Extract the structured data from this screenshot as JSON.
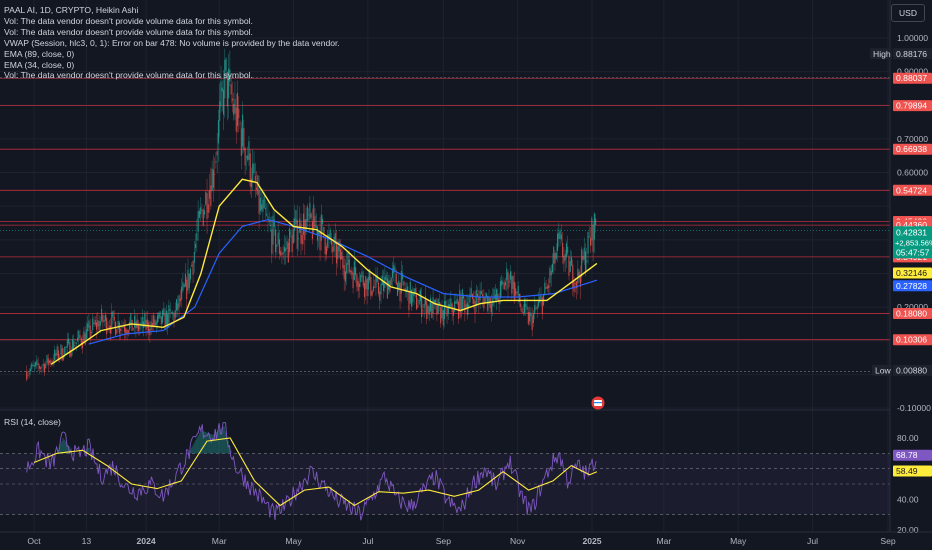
{
  "header": {
    "legend_lines": [
      "PAAL AI, 1D, CRYPTO, Heikin Ashi",
      "Vol: The data vendor doesn't provide volume data for this symbol.",
      "Vol: The data vendor doesn't provide volume data for this symbol.",
      "VWAP (Session, hlc3, 0, 1): Error on bar 478: No volume is provided by the data vendor.",
      "EMA (89, close, 0)",
      "EMA (34, close, 0)",
      "Vol: The data vendor doesn't provide volume data for this symbol."
    ],
    "currency": "USD",
    "rsi_title": "RSI (14, close)"
  },
  "colors": {
    "background": "#131722",
    "up": "#26a69a",
    "down": "#ef5350",
    "ema34": "#ffeb3b",
    "ema89": "#2962ff",
    "rsi": "#7e57c2",
    "rsi_ma": "#ffeb3b",
    "level_line": "#f23645"
  },
  "chart_data": [
    {
      "type": "candlestick",
      "title": "PAAL AI, 1D, CRYPTO, Heikin Ashi",
      "x_ticks": [
        "Oct",
        "13",
        "2024",
        "Mar",
        "May",
        "Jul",
        "Sep",
        "Nov",
        "2025",
        "Mar",
        "May",
        "Jul",
        "Sep"
      ],
      "y_ticks": [
        "1.00000",
        "0.90000",
        "0.70000",
        "0.60000",
        "0.20000",
        "-0.10000"
      ],
      "ylim": [
        -0.12,
        1.06
      ],
      "price_points": [
        [
          "2023-09-25",
          0.01
        ],
        [
          "2023-10-10",
          0.03
        ],
        [
          "2023-10-25",
          0.07
        ],
        [
          "2023-11-10",
          0.11
        ],
        [
          "2023-11-25",
          0.16
        ],
        [
          "2023-12-10",
          0.15
        ],
        [
          "2023-12-25",
          0.14
        ],
        [
          "2024-01-10",
          0.15
        ],
        [
          "2024-01-25",
          0.18
        ],
        [
          "2024-02-05",
          0.28
        ],
        [
          "2024-02-15",
          0.47
        ],
        [
          "2024-02-25",
          0.6
        ],
        [
          "2024-03-06",
          0.88
        ],
        [
          "2024-03-14",
          0.78
        ],
        [
          "2024-03-24",
          0.66
        ],
        [
          "2024-04-03",
          0.5
        ],
        [
          "2024-04-13",
          0.42
        ],
        [
          "2024-04-23",
          0.36
        ],
        [
          "2024-05-03",
          0.43
        ],
        [
          "2024-05-13",
          0.45
        ],
        [
          "2024-05-23",
          0.43
        ],
        [
          "2024-06-03",
          0.37
        ],
        [
          "2024-06-15",
          0.32
        ],
        [
          "2024-06-28",
          0.28
        ],
        [
          "2024-07-10",
          0.25
        ],
        [
          "2024-07-22",
          0.29
        ],
        [
          "2024-08-05",
          0.23
        ],
        [
          "2024-08-20",
          0.2
        ],
        [
          "2024-09-01",
          0.18
        ],
        [
          "2024-09-15",
          0.21
        ],
        [
          "2024-10-01",
          0.23
        ],
        [
          "2024-10-15",
          0.22
        ],
        [
          "2024-10-25",
          0.3
        ],
        [
          "2024-11-05",
          0.19
        ],
        [
          "2024-11-12",
          0.16
        ],
        [
          "2024-11-25",
          0.25
        ],
        [
          "2024-12-05",
          0.39
        ],
        [
          "2024-12-12",
          0.33
        ],
        [
          "2024-12-20",
          0.28
        ],
        [
          "2024-12-28",
          0.37
        ],
        [
          "2025-01-05",
          0.46
        ]
      ],
      "series": [
        {
          "name": "EMA (34, close, 0)",
          "points": [
            [
              "2023-10-15",
              0.03
            ],
            [
              "2023-11-05",
              0.08
            ],
            [
              "2023-11-25",
              0.13
            ],
            [
              "2023-12-20",
              0.15
            ],
            [
              "2024-01-15",
              0.14
            ],
            [
              "2024-02-01",
              0.17
            ],
            [
              "2024-02-15",
              0.3
            ],
            [
              "2024-03-01",
              0.5
            ],
            [
              "2024-03-20",
              0.58
            ],
            [
              "2024-04-01",
              0.57
            ],
            [
              "2024-04-15",
              0.49
            ],
            [
              "2024-05-01",
              0.44
            ],
            [
              "2024-05-20",
              0.43
            ],
            [
              "2024-06-10",
              0.38
            ],
            [
              "2024-07-01",
              0.31
            ],
            [
              "2024-07-20",
              0.26
            ],
            [
              "2024-08-10",
              0.24
            ],
            [
              "2024-08-25",
              0.21
            ],
            [
              "2024-09-15",
              0.19
            ],
            [
              "2024-10-01",
              0.21
            ],
            [
              "2024-10-20",
              0.22
            ],
            [
              "2024-11-10",
              0.22
            ],
            [
              "2024-11-25",
              0.22
            ],
            [
              "2024-12-10",
              0.26
            ],
            [
              "2024-12-25",
              0.3
            ],
            [
              "2025-01-05",
              0.33
            ]
          ]
        },
        {
          "name": "EMA (89, close, 0)",
          "points": [
            [
              "2023-11-15",
              0.09
            ],
            [
              "2023-12-15",
              0.12
            ],
            [
              "2024-01-15",
              0.13
            ],
            [
              "2024-02-10",
              0.2
            ],
            [
              "2024-03-01",
              0.36
            ],
            [
              "2024-03-20",
              0.44
            ],
            [
              "2024-04-10",
              0.46
            ],
            [
              "2024-05-01",
              0.44
            ],
            [
              "2024-06-01",
              0.4
            ],
            [
              "2024-07-01",
              0.35
            ],
            [
              "2024-08-01",
              0.29
            ],
            [
              "2024-09-01",
              0.24
            ],
            [
              "2024-10-01",
              0.23
            ],
            [
              "2024-11-01",
              0.23
            ],
            [
              "2024-12-01",
              0.24
            ],
            [
              "2025-01-05",
              0.28
            ]
          ]
        }
      ],
      "levels": [
        "0.88037",
        "0.79894",
        "0.66938",
        "0.54724",
        "0.45436",
        "0.44360",
        "0.34921",
        "0.18080",
        "0.10306"
      ],
      "level_values": [
        0.88037,
        0.79894,
        0.66938,
        0.54724,
        0.45436,
        0.4436,
        0.34921,
        0.1808,
        0.10306
      ],
      "badges": {
        "high_label": "High",
        "high_value": "0.88176",
        "low_label": "Low",
        "low_value": "0.00880",
        "current_price": "0.42831",
        "change": "+2,853.56%",
        "countdown": "05:47:57",
        "ema34_value": "0.32146",
        "ema89_value": "0.27828"
      },
      "badge_values": {
        "high": 0.88176,
        "low": 0.0088,
        "current": 0.42831,
        "ema34": 0.32146,
        "ema89": 0.27828
      }
    },
    {
      "type": "line",
      "title": "RSI (14, close)",
      "y_ticks": [
        "80.00",
        "40.00",
        "20.00"
      ],
      "ylim": [
        17,
        92
      ],
      "bands": [
        70,
        60,
        50,
        30
      ],
      "rsi_points": [
        [
          "2023-09-25",
          60
        ],
        [
          "2023-10-05",
          72
        ],
        [
          "2023-10-15",
          62
        ],
        [
          "2023-10-25",
          80
        ],
        [
          "2023-11-05",
          68
        ],
        [
          "2023-11-15",
          74
        ],
        [
          "2023-11-25",
          55
        ],
        [
          "2023-12-05",
          62
        ],
        [
          "2023-12-15",
          48
        ],
        [
          "2023-12-25",
          45
        ],
        [
          "2024-01-05",
          50
        ],
        [
          "2024-01-15",
          42
        ],
        [
          "2024-01-25",
          55
        ],
        [
          "2024-02-05",
          70
        ],
        [
          "2024-02-15",
          85
        ],
        [
          "2024-02-25",
          82
        ],
        [
          "2024-03-05",
          88
        ],
        [
          "2024-03-14",
          62
        ],
        [
          "2024-03-25",
          50
        ],
        [
          "2024-04-05",
          40
        ],
        [
          "2024-04-15",
          30
        ],
        [
          "2024-04-25",
          36
        ],
        [
          "2024-05-05",
          48
        ],
        [
          "2024-05-15",
          58
        ],
        [
          "2024-05-25",
          50
        ],
        [
          "2024-06-05",
          40
        ],
        [
          "2024-06-15",
          35
        ],
        [
          "2024-06-25",
          30
        ],
        [
          "2024-07-05",
          42
        ],
        [
          "2024-07-15",
          55
        ],
        [
          "2024-07-25",
          40
        ],
        [
          "2024-08-05",
          35
        ],
        [
          "2024-08-15",
          45
        ],
        [
          "2024-08-25",
          55
        ],
        [
          "2024-09-05",
          38
        ],
        [
          "2024-09-15",
          32
        ],
        [
          "2024-09-25",
          50
        ],
        [
          "2024-10-05",
          60
        ],
        [
          "2024-10-15",
          48
        ],
        [
          "2024-10-25",
          66
        ],
        [
          "2024-11-05",
          40
        ],
        [
          "2024-11-12",
          32
        ],
        [
          "2024-11-20",
          48
        ],
        [
          "2024-11-28",
          62
        ],
        [
          "2024-12-05",
          70
        ],
        [
          "2024-12-12",
          52
        ],
        [
          "2024-12-20",
          62
        ],
        [
          "2024-12-28",
          56
        ],
        [
          "2025-01-05",
          68
        ]
      ],
      "rsi_ma_points": [
        [
          "2023-10-01",
          64
        ],
        [
          "2023-10-20",
          70
        ],
        [
          "2023-11-10",
          72
        ],
        [
          "2023-11-30",
          62
        ],
        [
          "2023-12-20",
          50
        ],
        [
          "2024-01-10",
          47
        ],
        [
          "2024-01-30",
          52
        ],
        [
          "2024-02-20",
          78
        ],
        [
          "2024-03-10",
          80
        ],
        [
          "2024-03-30",
          52
        ],
        [
          "2024-04-20",
          36
        ],
        [
          "2024-05-10",
          46
        ],
        [
          "2024-05-30",
          48
        ],
        [
          "2024-06-20",
          36
        ],
        [
          "2024-07-10",
          45
        ],
        [
          "2024-07-30",
          44
        ],
        [
          "2024-08-20",
          46
        ],
        [
          "2024-09-10",
          42
        ],
        [
          "2024-09-30",
          46
        ],
        [
          "2024-10-20",
          58
        ],
        [
          "2024-11-10",
          46
        ],
        [
          "2024-11-30",
          52
        ],
        [
          "2024-12-15",
          62
        ],
        [
          "2024-12-30",
          56
        ],
        [
          "2025-01-05",
          58
        ]
      ],
      "badges": {
        "rsi_value": "68.78",
        "rsi_ma_value": "58.49"
      },
      "badge_values": {
        "rsi": 68.78,
        "rsi_ma": 58.49
      }
    }
  ]
}
